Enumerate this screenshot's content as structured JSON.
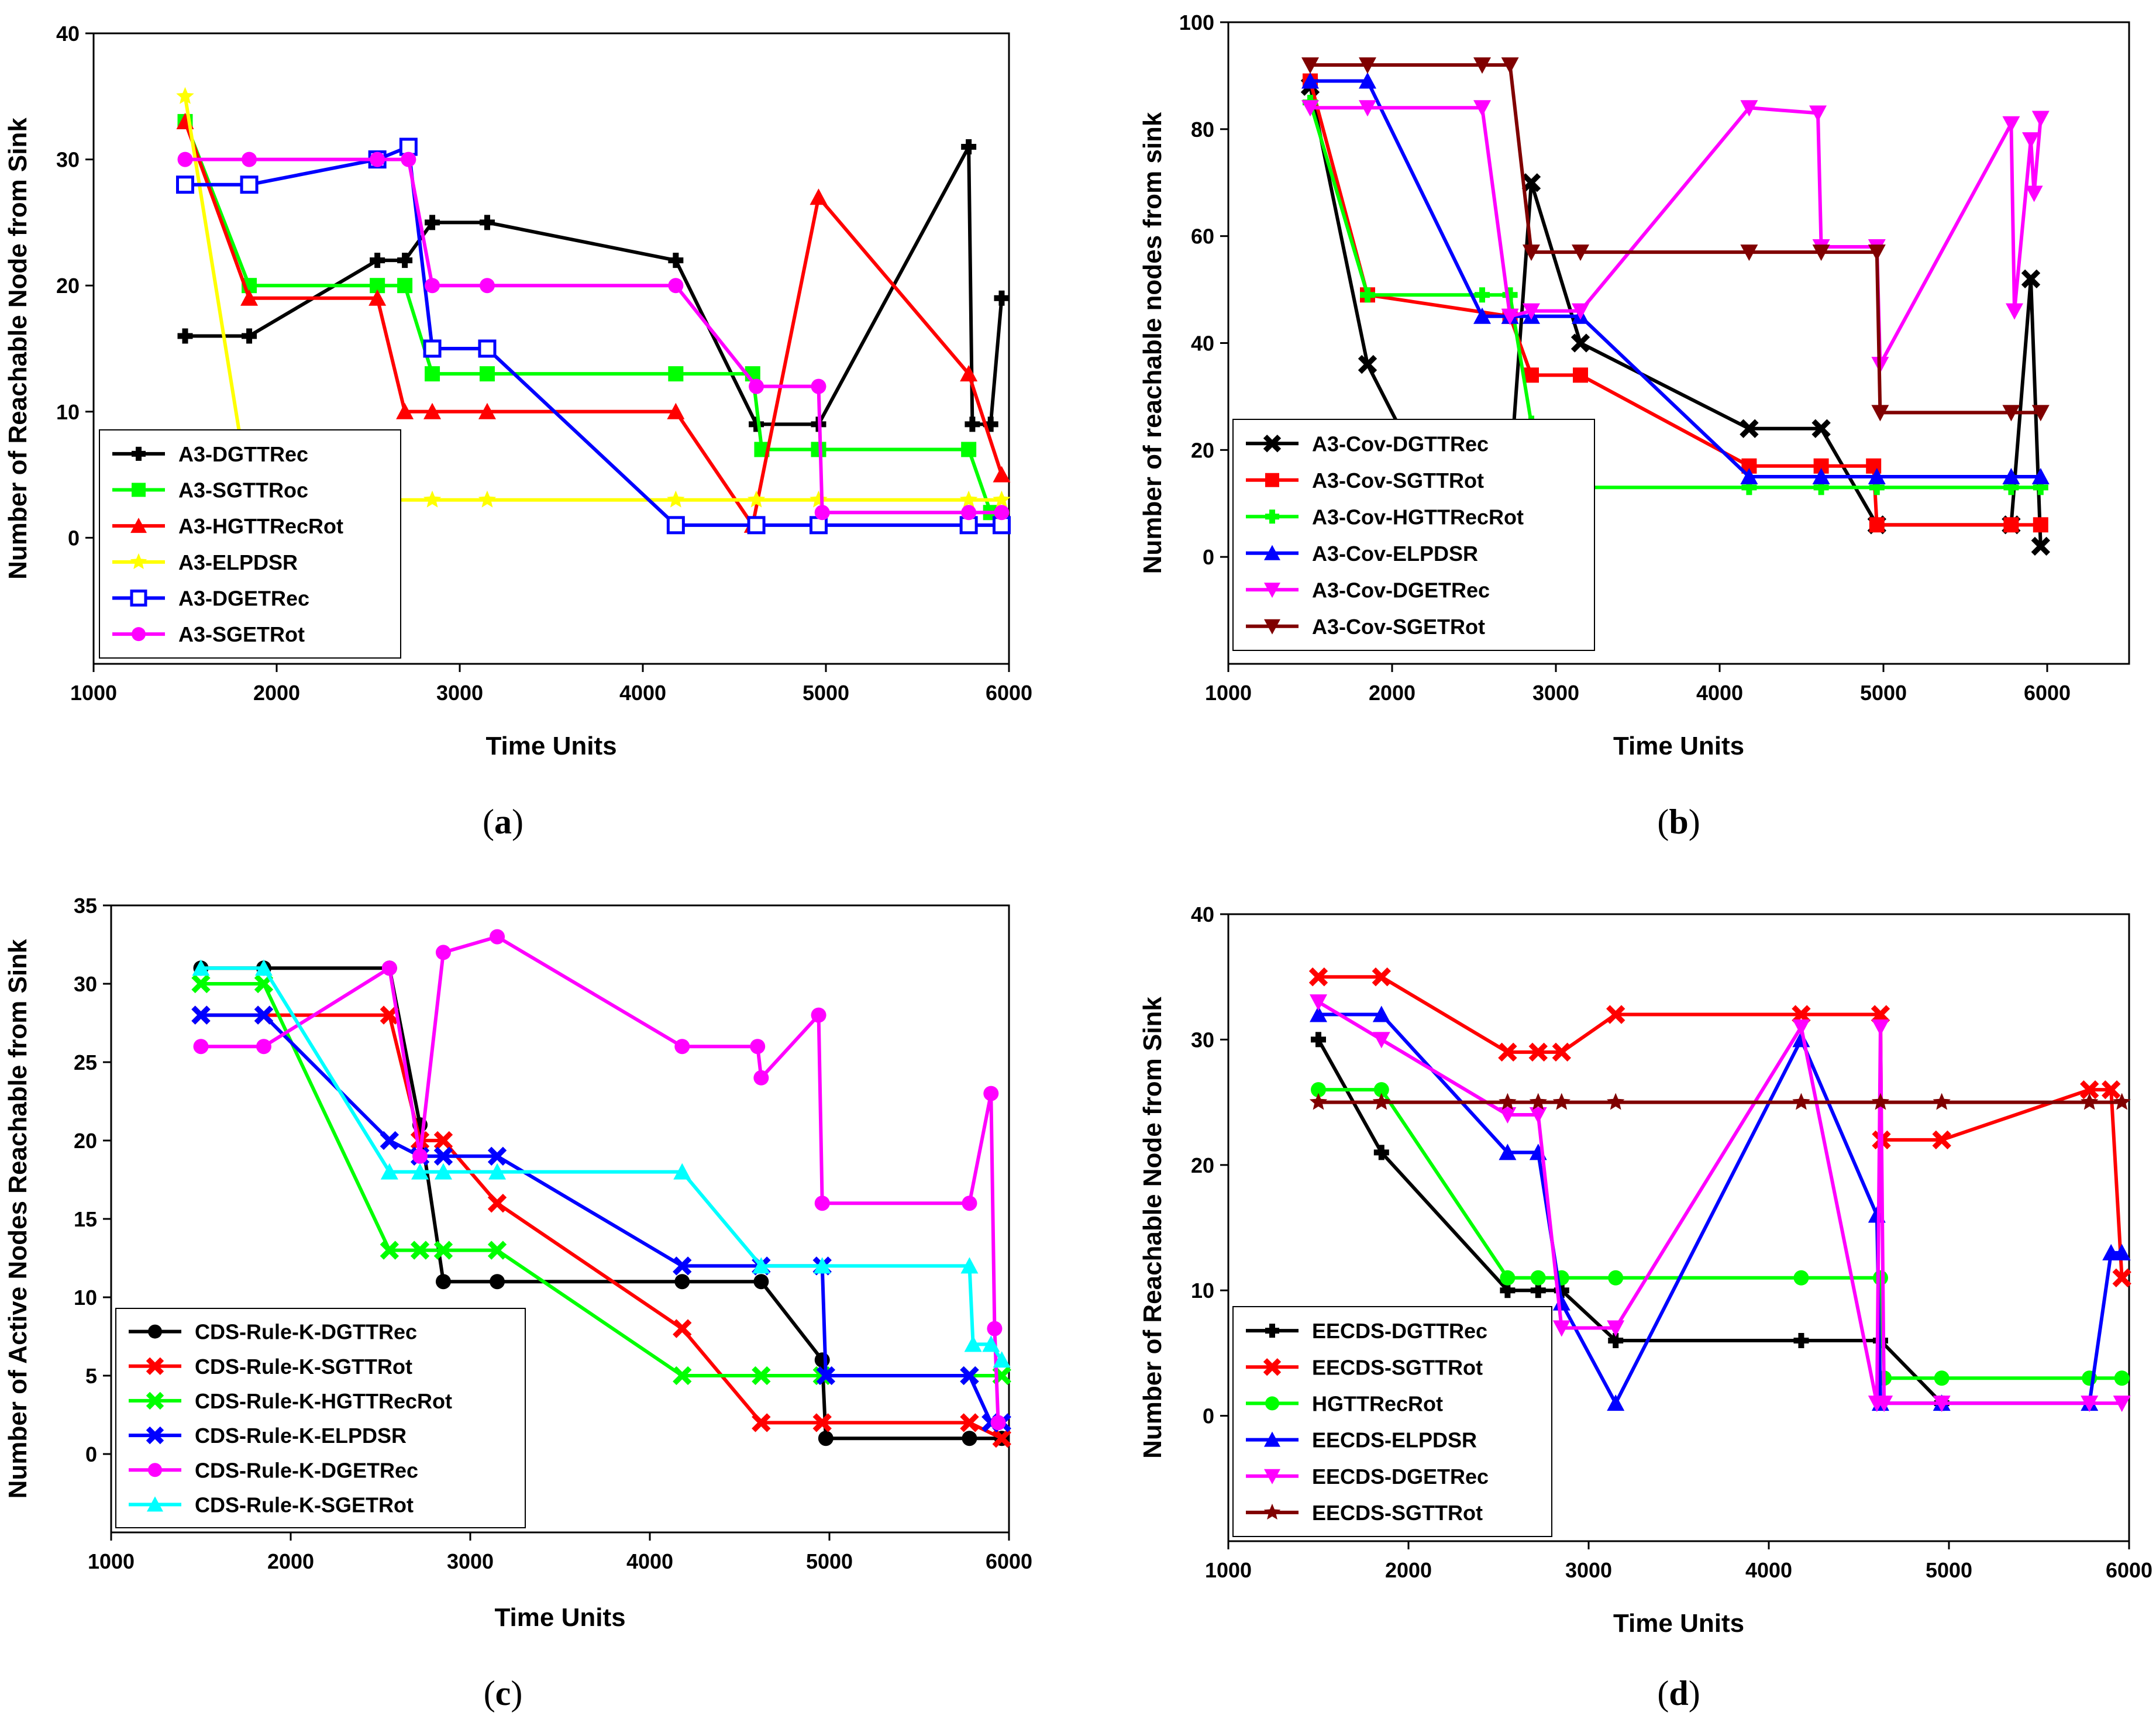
{
  "chart_data": [
    {
      "id": "a",
      "type": "line",
      "caption_letter": "a",
      "xlabel": "Time Units",
      "ylabel": "Number of Reachable Node from Sink",
      "xlim": [
        1000,
        6000
      ],
      "ylim": [
        -10,
        40
      ],
      "xticks": [
        1000,
        2000,
        3000,
        4000,
        5000,
        6000
      ],
      "yticks": [
        0,
        10,
        20,
        30,
        40
      ],
      "legend_position": "bottom-left",
      "grid": false,
      "series": [
        {
          "name": "A3-DGTTRec",
          "color": "#000000",
          "marker": "plus",
          "x": [
            1500,
            1850,
            2550,
            2700,
            2850,
            3150,
            4180,
            4620,
            4960,
            5780,
            5800,
            5900,
            5960
          ],
          "y": [
            16,
            16,
            22,
            22,
            25,
            25,
            22,
            9,
            9,
            31,
            9,
            9,
            19
          ]
        },
        {
          "name": "A3-SGTTRoc",
          "color": "#00ff00",
          "marker": "square",
          "x": [
            1500,
            1850,
            2550,
            2700,
            2850,
            3150,
            4180,
            4600,
            4650,
            4960,
            5780,
            5900
          ],
          "y": [
            33,
            20,
            20,
            20,
            13,
            13,
            13,
            13,
            7,
            7,
            7,
            2
          ]
        },
        {
          "name": "A3-HGTTRecRot",
          "color": "#ff0000",
          "marker": "triangle",
          "x": [
            1500,
            1850,
            2550,
            2700,
            2850,
            3150,
            4180,
            4600,
            4960,
            5780,
            5960
          ],
          "y": [
            33,
            19,
            19,
            10,
            10,
            10,
            10,
            1,
            27,
            13,
            5
          ]
        },
        {
          "name": "A3-ELPDSR",
          "color": "#ffff00",
          "marker": "star",
          "x": [
            1500,
            1800,
            2550,
            2850,
            3150,
            4180,
            4620,
            4960,
            5780,
            5960
          ],
          "y": [
            35,
            8,
            3,
            3,
            3,
            3,
            3,
            3,
            3,
            3
          ]
        },
        {
          "name": "A3-DGETRec",
          "color": "#0000ff",
          "marker": "hollowsquare",
          "x": [
            1500,
            1850,
            2550,
            2720,
            2850,
            3150,
            4180,
            4620,
            4960,
            5780,
            5960
          ],
          "y": [
            28,
            28,
            30,
            31,
            15,
            15,
            1,
            1,
            1,
            1,
            1
          ]
        },
        {
          "name": "A3-SGETRot",
          "color": "#ff00ff",
          "marker": "circle",
          "x": [
            1500,
            1850,
            2550,
            2720,
            2850,
            3150,
            4180,
            4620,
            4960,
            4980,
            5780,
            5960
          ],
          "y": [
            30,
            30,
            30,
            30,
            20,
            20,
            20,
            12,
            12,
            2,
            2,
            2
          ]
        }
      ]
    },
    {
      "id": "b",
      "type": "line",
      "caption_letter": "b",
      "xlabel": "Time Units",
      "ylabel": "Number of reachable nodes from sink",
      "xlim": [
        1000,
        6500
      ],
      "ylim": [
        -20,
        100
      ],
      "xticks": [
        1000,
        2000,
        3000,
        4000,
        5000,
        6000
      ],
      "yticks": [
        0,
        20,
        40,
        60,
        80,
        100
      ],
      "legend_position": "bottom-left",
      "grid": false,
      "series": [
        {
          "name": "A3-Cov-DGTTRec",
          "color": "#000000",
          "marker": "x",
          "x": [
            1500,
            1850,
            2200,
            2720,
            2850,
            3150,
            4180,
            4620,
            4960,
            5780,
            5900,
            5960
          ],
          "y": [
            88,
            36,
            15,
            15,
            70,
            40,
            24,
            24,
            6,
            6,
            52,
            2
          ]
        },
        {
          "name": "A3-Cov-SGTTRot",
          "color": "#ff0000",
          "marker": "square",
          "x": [
            1500,
            1850,
            2720,
            2850,
            3150,
            4180,
            4620,
            4940,
            4960,
            5780,
            5960
          ],
          "y": [
            89,
            49,
            45,
            34,
            34,
            17,
            17,
            17,
            6,
            6,
            6
          ]
        },
        {
          "name": "A3-Cov-HGTTRecRot",
          "color": "#00ff00",
          "marker": "plus",
          "x": [
            1500,
            1850,
            2550,
            2720,
            2850,
            2900,
            3150,
            4180,
            4620,
            4960,
            5780,
            5960
          ],
          "y": [
            85,
            49,
            49,
            49,
            25,
            13,
            13,
            13,
            13,
            13,
            13,
            13
          ]
        },
        {
          "name": "A3-Cov-ELPDSR",
          "color": "#0000ff",
          "marker": "triangle",
          "x": [
            1500,
            1850,
            2550,
            2720,
            2850,
            3150,
            4180,
            4620,
            4960,
            5780,
            5960
          ],
          "y": [
            89,
            89,
            45,
            45,
            45,
            45,
            15,
            15,
            15,
            15,
            15
          ]
        },
        {
          "name": "A3-Cov-DGETRec",
          "color": "#ff00ff",
          "marker": "triangledown",
          "x": [
            1500,
            1850,
            2550,
            2720,
            2850,
            3150,
            4180,
            4600,
            4620,
            4960,
            4980,
            5780,
            5800,
            5900,
            5920,
            5960
          ],
          "y": [
            84,
            84,
            84,
            45,
            46,
            46,
            84,
            83,
            58,
            58,
            36,
            81,
            46,
            78,
            68,
            82
          ]
        },
        {
          "name": "A3-Cov-SGETRot",
          "color": "#800000",
          "marker": "triangledown",
          "x": [
            1500,
            1850,
            2550,
            2720,
            2850,
            3150,
            4180,
            4620,
            4960,
            4980,
            5780,
            5960
          ],
          "y": [
            92,
            92,
            92,
            92,
            57,
            57,
            57,
            57,
            57,
            27,
            27,
            27
          ]
        }
      ]
    },
    {
      "id": "c",
      "type": "line",
      "caption_letter": "c",
      "xlabel": "Time Units",
      "ylabel": "Number of Active Nodes Reachable from Sink",
      "xlim": [
        1000,
        6000
      ],
      "ylim": [
        -5,
        35
      ],
      "xticks": [
        1000,
        2000,
        3000,
        4000,
        5000,
        6000
      ],
      "yticks": [
        0,
        5,
        10,
        15,
        20,
        25,
        30,
        35
      ],
      "legend_position": "bottom-left",
      "grid": false,
      "series": [
        {
          "name": "CDS-Rule-K-DGTTRec",
          "color": "#000000",
          "marker": "circle",
          "x": [
            1500,
            1850,
            2550,
            2720,
            2850,
            3150,
            4180,
            4620,
            4960,
            4980,
            5780,
            5960
          ],
          "y": [
            31,
            31,
            31,
            21,
            11,
            11,
            11,
            11,
            6,
            1,
            1,
            1
          ]
        },
        {
          "name": "CDS-Rule-K-SGTTRot",
          "color": "#ff0000",
          "marker": "x",
          "x": [
            1500,
            1850,
            2550,
            2720,
            2850,
            3150,
            4180,
            4620,
            4960,
            5780,
            5960
          ],
          "y": [
            28,
            28,
            28,
            20,
            20,
            16,
            8,
            2,
            2,
            2,
            1
          ]
        },
        {
          "name": "CDS-Rule-K-HGTTRecRot",
          "color": "#00ff00",
          "marker": "x",
          "x": [
            1500,
            1850,
            2550,
            2720,
            2850,
            3150,
            4180,
            4620,
            4960,
            5780,
            5960
          ],
          "y": [
            30,
            30,
            13,
            13,
            13,
            13,
            5,
            5,
            5,
            5,
            5
          ]
        },
        {
          "name": "CDS-Rule-K-ELPDSR",
          "color": "#0000ff",
          "marker": "x",
          "x": [
            1500,
            1850,
            2550,
            2720,
            2850,
            3150,
            4180,
            4620,
            4960,
            4980,
            5780,
            5900,
            5960
          ],
          "y": [
            28,
            28,
            20,
            19,
            19,
            19,
            12,
            12,
            12,
            5,
            5,
            2,
            2
          ]
        },
        {
          "name": "CDS-Rule-K-DGETRec",
          "color": "#ff00ff",
          "marker": "circle",
          "x": [
            1500,
            1850,
            2550,
            2720,
            2850,
            3150,
            4180,
            4600,
            4620,
            4940,
            4960,
            5780,
            5900,
            5920,
            5940
          ],
          "y": [
            26,
            26,
            31,
            19,
            32,
            33,
            26,
            26,
            24,
            28,
            16,
            16,
            23,
            8,
            2
          ]
        },
        {
          "name": "CDS-Rule-K-SGETRot",
          "color": "#00ffff",
          "marker": "triangle",
          "x": [
            1500,
            1850,
            2550,
            2720,
            2850,
            3150,
            4180,
            4620,
            4960,
            5780,
            5800,
            5900,
            5960
          ],
          "y": [
            31,
            31,
            18,
            18,
            18,
            18,
            18,
            12,
            12,
            12,
            7,
            7,
            6
          ]
        }
      ]
    },
    {
      "id": "d",
      "type": "line",
      "caption_letter": "d",
      "xlabel": "Time Units",
      "ylabel": "Number of Reachable Node from Sink",
      "xlim": [
        1000,
        6000
      ],
      "ylim": [
        -10,
        40
      ],
      "xticks": [
        1000,
        2000,
        3000,
        4000,
        5000,
        6000
      ],
      "yticks": [
        0,
        10,
        20,
        30,
        40
      ],
      "legend_position": "bottom-left",
      "grid": false,
      "series": [
        {
          "name": "EECDS-DGTTRec",
          "color": "#000000",
          "marker": "plus",
          "x": [
            1500,
            1850,
            2550,
            2720,
            2850,
            3150,
            4180,
            4620,
            4960
          ],
          "y": [
            30,
            21,
            10,
            10,
            10,
            6,
            6,
            6,
            1
          ]
        },
        {
          "name": "EECDS-SGTTRot",
          "color": "#ff0000",
          "marker": "x",
          "x": [
            1500,
            1850,
            2550,
            2720,
            2850,
            3150,
            4180,
            4620,
            4625,
            4960,
            5780,
            5900,
            5960
          ],
          "y": [
            35,
            35,
            29,
            29,
            29,
            32,
            32,
            32,
            22,
            22,
            26,
            26,
            11
          ]
        },
        {
          "name": "HGTTRecRot",
          "color": "#00ff00",
          "marker": "circle",
          "x": [
            1500,
            1850,
            2550,
            2720,
            2850,
            3150,
            4180,
            4620,
            4640,
            4960,
            5780,
            5960
          ],
          "y": [
            26,
            26,
            11,
            11,
            11,
            11,
            11,
            11,
            3,
            3,
            3,
            3
          ]
        },
        {
          "name": "EECDS-ELPDSR",
          "color": "#0000ff",
          "marker": "triangle",
          "x": [
            1500,
            1850,
            2550,
            2720,
            2850,
            3150,
            4180,
            4600,
            4620,
            4960,
            5780,
            5900,
            5960
          ],
          "y": [
            32,
            32,
            21,
            21,
            9,
            1,
            30,
            16,
            1,
            1,
            1,
            13,
            13
          ]
        },
        {
          "name": "EECDS-DGETRec",
          "color": "#ff00ff",
          "marker": "triangledown",
          "x": [
            1500,
            1850,
            2550,
            2720,
            2850,
            3150,
            4180,
            4600,
            4620,
            4640,
            4960,
            5780,
            5960
          ],
          "y": [
            33,
            30,
            24,
            24,
            7,
            7,
            31,
            1,
            31,
            1,
            1,
            1,
            1
          ]
        },
        {
          "name": "EECDS-SGTTRot",
          "color": "#800000",
          "marker": "star",
          "x": [
            1500,
            1850,
            2550,
            2720,
            2850,
            3150,
            4180,
            4620,
            4960,
            5780,
            5960
          ],
          "y": [
            25,
            25,
            25,
            25,
            25,
            25,
            25,
            25,
            25,
            25,
            25
          ]
        }
      ]
    }
  ]
}
